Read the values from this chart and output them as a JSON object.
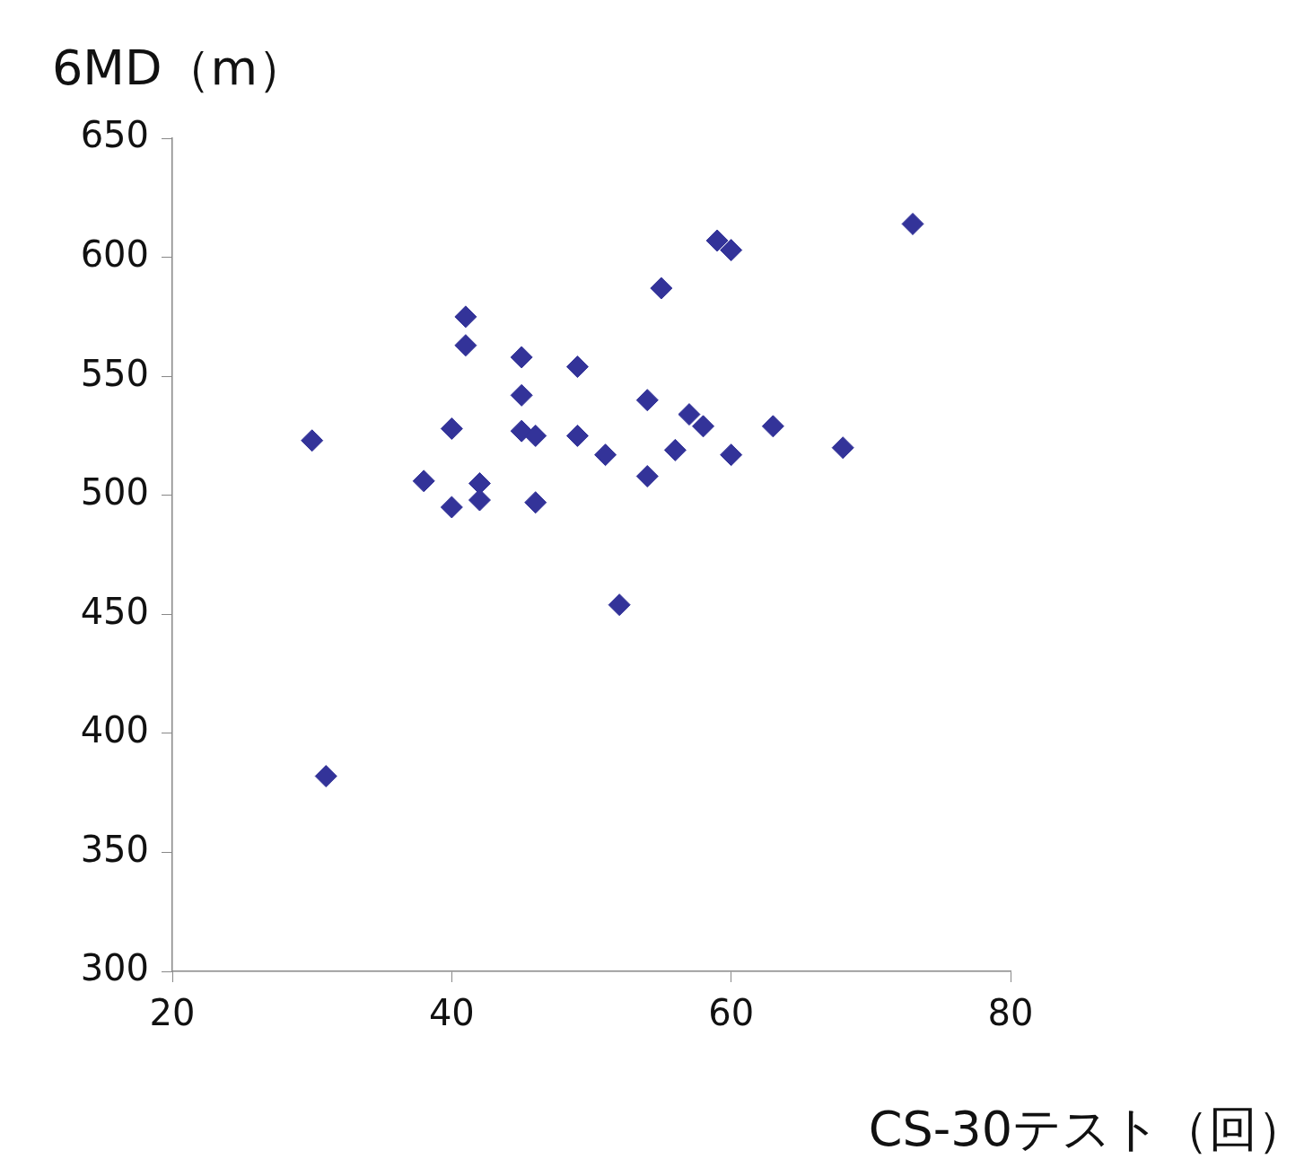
{
  "chart_data": {
    "type": "scatter",
    "xlabel": "CS-30テスト（回）",
    "ylabel": "6MD（m）",
    "xlim": [
      20,
      80
    ],
    "xticks": [
      20,
      40,
      60,
      80
    ],
    "ylim": [
      300,
      650
    ],
    "yticks": [
      300,
      350,
      400,
      450,
      500,
      550,
      600,
      650
    ],
    "grid": false,
    "legend": false,
    "marker": "diamond",
    "series": [
      {
        "color": "#333399",
        "x": [
          30,
          31,
          38,
          40,
          40,
          41,
          41,
          42,
          42,
          45,
          45,
          45,
          46,
          46,
          49,
          49,
          51,
          52,
          54,
          54,
          55,
          56,
          57,
          58,
          59,
          60,
          60,
          63,
          68,
          73
        ],
        "values": [
          523,
          382,
          506,
          528,
          495,
          575,
          563,
          505,
          498,
          558,
          542,
          527,
          525,
          497,
          554,
          525,
          517,
          454,
          540,
          508,
          587,
          519,
          534,
          529,
          607,
          603,
          517,
          529,
          520,
          614
        ]
      }
    ]
  }
}
